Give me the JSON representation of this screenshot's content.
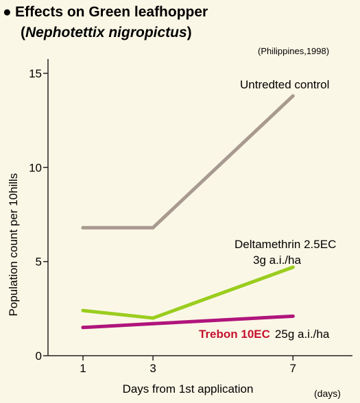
{
  "header": {
    "bullet": "●",
    "title": "Effects on Green leafhopper",
    "subtitle_open": "(",
    "subtitle_italic": "Nephotettix nigropictus",
    "subtitle_close": ")",
    "source_note": "(Philippines,1998)"
  },
  "chart_data": {
    "type": "line",
    "title": "Effects on Green leafhopper (Nephotettix nigropictus)",
    "xlabel": "Days from 1st application",
    "x_unit": "(days)",
    "ylabel": "Population count per 10hills",
    "x": [
      1,
      3,
      7
    ],
    "xticks": [
      "1",
      "3",
      "7"
    ],
    "xlim": [
      0,
      8.7
    ],
    "ylim": [
      0,
      15
    ],
    "yticks": [
      "0",
      "5",
      "10",
      "15"
    ],
    "grid": false,
    "series": [
      {
        "name": "Untredted control",
        "values": [
          6.8,
          6.8,
          13.8
        ],
        "color": "#a89a90"
      },
      {
        "name": "Deltamethrin 2.5EC",
        "name_line2": "3g a.i./ha",
        "values": [
          2.4,
          2.0,
          4.7
        ],
        "color": "#9acd1e"
      },
      {
        "name": "Trebon 10EC",
        "name_suffix": "25g a.i./ha",
        "values": [
          1.5,
          1.7,
          2.1
        ],
        "color": "#b0157c",
        "label_color": "#c4122e"
      }
    ]
  }
}
